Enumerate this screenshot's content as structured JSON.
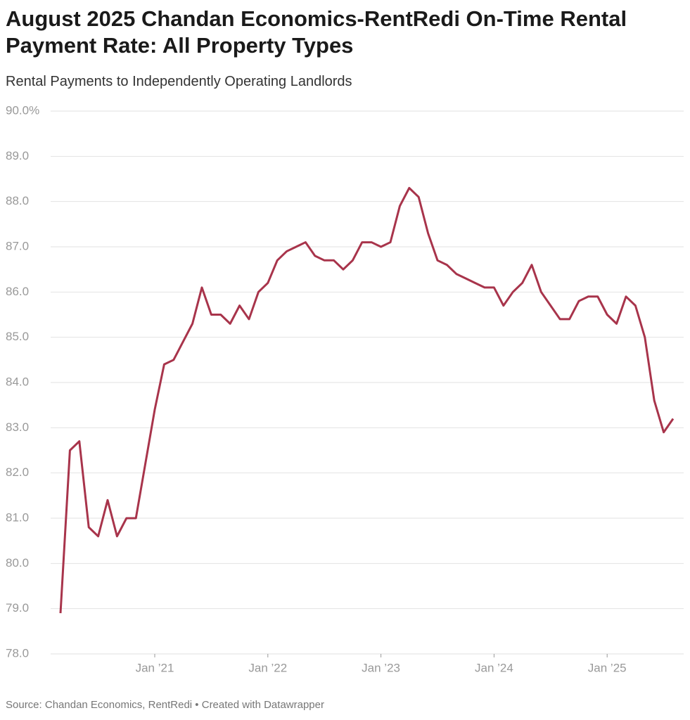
{
  "chart_data": {
    "type": "line",
    "title": "August 2025 Chandan Economics-RentRedi On-Time Rental Payment Rate: All Property Types",
    "subtitle": "Rental Payments to Independently Operating Landlords",
    "source": "Source: Chandan Economics, RentRedi • Created with Datawrapper",
    "color": "#a8344b",
    "grid": true,
    "x": [
      "2020-03",
      "2020-04",
      "2020-05",
      "2020-06",
      "2020-07",
      "2020-08",
      "2020-09",
      "2020-10",
      "2020-11",
      "2020-12",
      "2021-01",
      "2021-02",
      "2021-03",
      "2021-04",
      "2021-05",
      "2021-06",
      "2021-07",
      "2021-08",
      "2021-09",
      "2021-10",
      "2021-11",
      "2021-12",
      "2022-01",
      "2022-02",
      "2022-03",
      "2022-04",
      "2022-05",
      "2022-06",
      "2022-07",
      "2022-08",
      "2022-09",
      "2022-10",
      "2022-11",
      "2022-12",
      "2023-01",
      "2023-02",
      "2023-03",
      "2023-04",
      "2023-05",
      "2023-06",
      "2023-07",
      "2023-08",
      "2023-09",
      "2023-10",
      "2023-11",
      "2023-12",
      "2024-01",
      "2024-02",
      "2024-03",
      "2024-04",
      "2024-05",
      "2024-06",
      "2024-07",
      "2024-08",
      "2024-09",
      "2024-10",
      "2024-11",
      "2024-12",
      "2025-01",
      "2025-02",
      "2025-03",
      "2025-04",
      "2025-05",
      "2025-06",
      "2025-07",
      "2025-08"
    ],
    "values": [
      78.9,
      82.5,
      82.7,
      80.8,
      80.6,
      81.4,
      80.6,
      81.0,
      81.0,
      82.2,
      83.4,
      84.4,
      84.5,
      84.9,
      85.3,
      86.1,
      85.5,
      85.5,
      85.3,
      85.7,
      85.4,
      86.0,
      86.2,
      86.7,
      86.9,
      87.0,
      87.1,
      86.8,
      86.7,
      86.7,
      86.5,
      86.7,
      87.1,
      87.1,
      87.0,
      87.1,
      87.9,
      88.3,
      88.1,
      87.3,
      86.7,
      86.6,
      86.4,
      86.3,
      86.2,
      86.1,
      86.1,
      85.7,
      86.0,
      86.2,
      86.6,
      86.0,
      85.7,
      85.4,
      85.4,
      85.8,
      85.9,
      85.9,
      85.5,
      85.3,
      85.9,
      85.7,
      85.0,
      83.6,
      82.9,
      83.2
    ],
    "xlim": [
      "2020-03",
      "2025-08"
    ],
    "xticks": [
      {
        "value": "2021-01",
        "label": "Jan ’21"
      },
      {
        "value": "2022-01",
        "label": "Jan ’22"
      },
      {
        "value": "2023-01",
        "label": "Jan ’23"
      },
      {
        "value": "2024-01",
        "label": "Jan ’24"
      },
      {
        "value": "2025-01",
        "label": "Jan ’25"
      }
    ],
    "ylim": [
      78,
      90
    ],
    "yticks": [
      {
        "value": 78,
        "label": "78.0"
      },
      {
        "value": 79,
        "label": "79.0"
      },
      {
        "value": 80,
        "label": "80.0"
      },
      {
        "value": 81,
        "label": "81.0"
      },
      {
        "value": 82,
        "label": "82.0"
      },
      {
        "value": 83,
        "label": "83.0"
      },
      {
        "value": 84,
        "label": "84.0"
      },
      {
        "value": 85,
        "label": "85.0"
      },
      {
        "value": 86,
        "label": "86.0"
      },
      {
        "value": 87,
        "label": "87.0"
      },
      {
        "value": 88,
        "label": "88.0"
      },
      {
        "value": 89,
        "label": "89.0"
      },
      {
        "value": 90,
        "label": "90.0%"
      }
    ]
  }
}
